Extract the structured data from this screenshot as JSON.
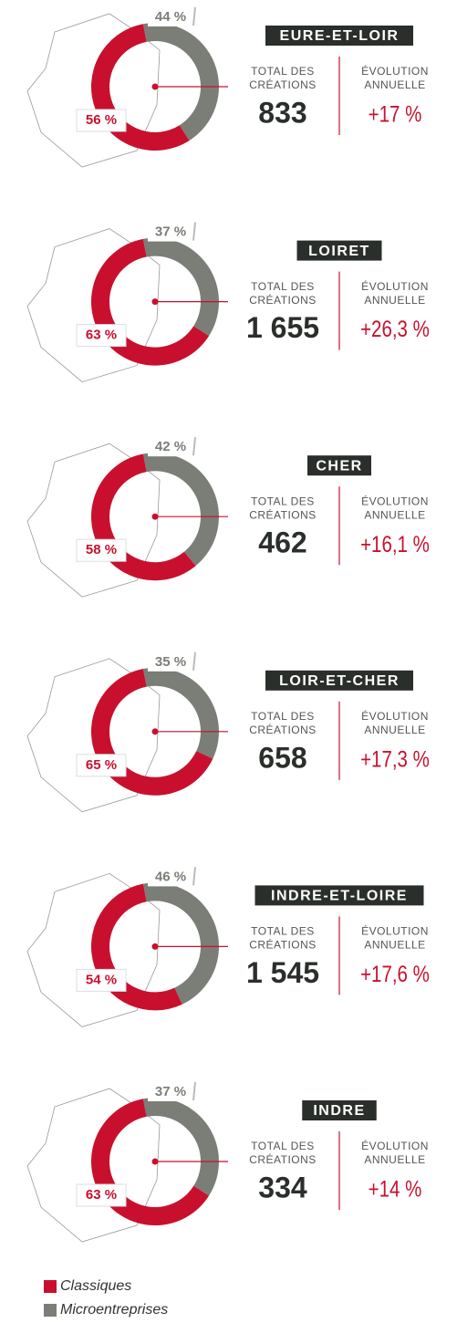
{
  "chart_data": [
    {
      "type": "donut",
      "title": "EURE-ET-LOIR",
      "values": [
        56,
        44
      ],
      "value_labels": [
        "56 %",
        "44 %"
      ],
      "total_label": [
        "TOTAL DES",
        "CRÉATIONS"
      ],
      "total": "833",
      "evolution_label": [
        "ÉVOLUTION",
        "ANNUELLE"
      ],
      "evolution": "+17 %"
    },
    {
      "type": "donut",
      "title": "LOIRET",
      "values": [
        63,
        37
      ],
      "value_labels": [
        "63 %",
        "37 %"
      ],
      "total_label": [
        "TOTAL DES",
        "CRÉATIONS"
      ],
      "total": "1 655",
      "evolution_label": [
        "ÉVOLUTION",
        "ANNUELLE"
      ],
      "evolution": "+26,3 %"
    },
    {
      "type": "donut",
      "title": "CHER",
      "values": [
        58,
        42
      ],
      "value_labels": [
        "58 %",
        "42 %"
      ],
      "total_label": [
        "TOTAL DES",
        "CRÉATIONS"
      ],
      "total": "462",
      "evolution_label": [
        "ÉVOLUTION",
        "ANNUELLE"
      ],
      "evolution": "+16,1 %"
    },
    {
      "type": "donut",
      "title": "LOIR-ET-CHER",
      "values": [
        65,
        35
      ],
      "value_labels": [
        "65 %",
        "35 %"
      ],
      "total_label": [
        "TOTAL DES",
        "CRÉATIONS"
      ],
      "total": "658",
      "evolution_label": [
        "ÉVOLUTION",
        "ANNUELLE"
      ],
      "evolution": "+17,3 %"
    },
    {
      "type": "donut",
      "title": "INDRE-ET-LOIRE",
      "values": [
        54,
        46
      ],
      "value_labels": [
        "54 %",
        "46 %"
      ],
      "total_label": [
        "TOTAL DES",
        "CRÉATIONS"
      ],
      "total": "1 545",
      "evolution_label": [
        "ÉVOLUTION",
        "ANNUELLE"
      ],
      "evolution": "+17,6 %"
    },
    {
      "type": "donut",
      "title": "INDRE",
      "values": [
        63,
        37
      ],
      "value_labels": [
        "63 %",
        "37 %"
      ],
      "total_label": [
        "TOTAL DES",
        "CRÉATIONS"
      ],
      "total": "334",
      "evolution_label": [
        "ÉVOLUTION",
        "ANNUELLE"
      ],
      "evolution": "+14 %"
    }
  ],
  "legend": [
    {
      "name": "Classiques",
      "color": "#c8102e"
    },
    {
      "name": "Microentreprises",
      "color": "#7b7e76"
    }
  ]
}
